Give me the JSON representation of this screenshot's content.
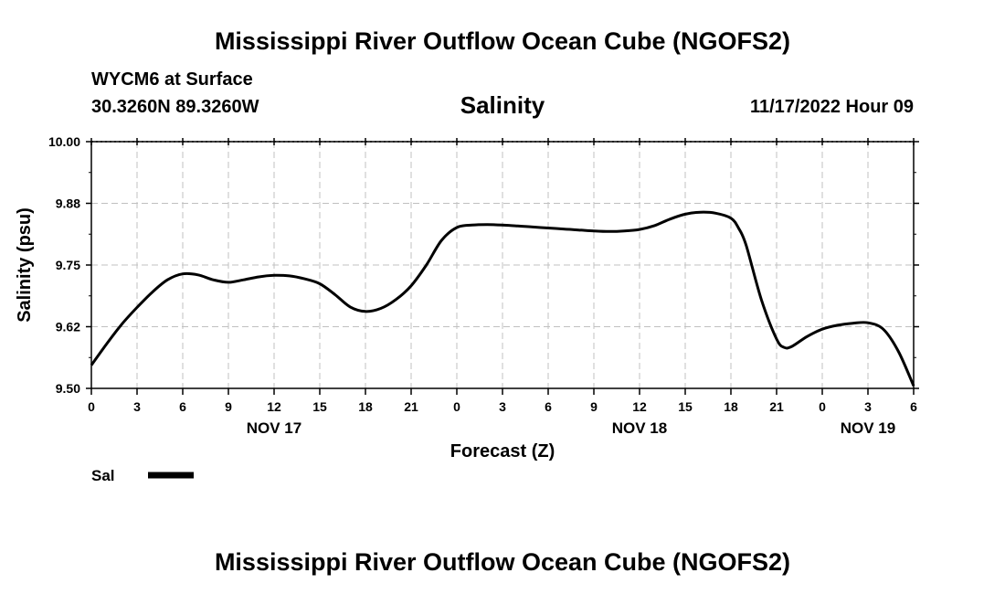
{
  "header": {
    "title": "Mississippi River Outflow Ocean Cube (NGOFS2)",
    "station": "WYCM6 at Surface",
    "coords": "30.3260N  89.3260W",
    "datetime": "11/17/2022 Hour 09"
  },
  "footer": {
    "title": "Mississippi River Outflow Ocean Cube (NGOFS2)"
  },
  "colors": {
    "line": "#000000",
    "grid": "#c0c0c0",
    "background": "#ffffff"
  },
  "chart_data": {
    "type": "line",
    "title": "Salinity",
    "xlabel": "Forecast (Z)",
    "ylabel": "Salinity (psu)",
    "xlim": [
      0,
      54
    ],
    "ylim": [
      9.5,
      10.0
    ],
    "yticks": [
      "9.50",
      "9.62",
      "9.75",
      "9.88",
      "10.00"
    ],
    "ytick_values": [
      9.5,
      9.625,
      9.75,
      9.875,
      10.0
    ],
    "xticks": [
      "0",
      "3",
      "6",
      "9",
      "12",
      "15",
      "18",
      "21",
      "0",
      "3",
      "6",
      "9",
      "12",
      "15",
      "18",
      "21",
      "0",
      "3",
      "6"
    ],
    "xtick_values": [
      0,
      3,
      6,
      9,
      12,
      15,
      18,
      21,
      24,
      27,
      30,
      33,
      36,
      39,
      42,
      45,
      48,
      51,
      54
    ],
    "day_labels": [
      {
        "label": "NOV 17",
        "x": 12
      },
      {
        "label": "NOV 18",
        "x": 36
      },
      {
        "label": "NOV 19",
        "x": 51
      }
    ],
    "grid": true,
    "legend": {
      "position": "bottom-left",
      "entries": [
        "Sal"
      ]
    },
    "series": [
      {
        "name": "Sal",
        "x": [
          0,
          1,
          2,
          3,
          4,
          5,
          6,
          7,
          8,
          9,
          10,
          11,
          12,
          13,
          14,
          15,
          16,
          17,
          18,
          19,
          20,
          21,
          22,
          23,
          24,
          25,
          26,
          27,
          28,
          29,
          30,
          31,
          32,
          33,
          34,
          35,
          36,
          37,
          38,
          39,
          40,
          41,
          42,
          42.5,
          43,
          44,
          45,
          45.5,
          46,
          47,
          48,
          49,
          50,
          51,
          52,
          53,
          54
        ],
        "values": [
          9.547,
          9.59,
          9.63,
          9.664,
          9.695,
          9.72,
          9.732,
          9.73,
          9.72,
          9.715,
          9.72,
          9.726,
          9.729,
          9.728,
          9.722,
          9.712,
          9.69,
          9.665,
          9.656,
          9.662,
          9.68,
          9.708,
          9.75,
          9.8,
          9.826,
          9.831,
          9.832,
          9.831,
          9.829,
          9.827,
          9.825,
          9.823,
          9.821,
          9.819,
          9.818,
          9.819,
          9.822,
          9.83,
          9.843,
          9.853,
          9.857,
          9.855,
          9.845,
          9.825,
          9.79,
          9.68,
          9.6,
          9.583,
          9.585,
          9.605,
          9.62,
          9.628,
          9.632,
          9.633,
          9.62,
          9.575,
          9.505
        ]
      }
    ]
  }
}
